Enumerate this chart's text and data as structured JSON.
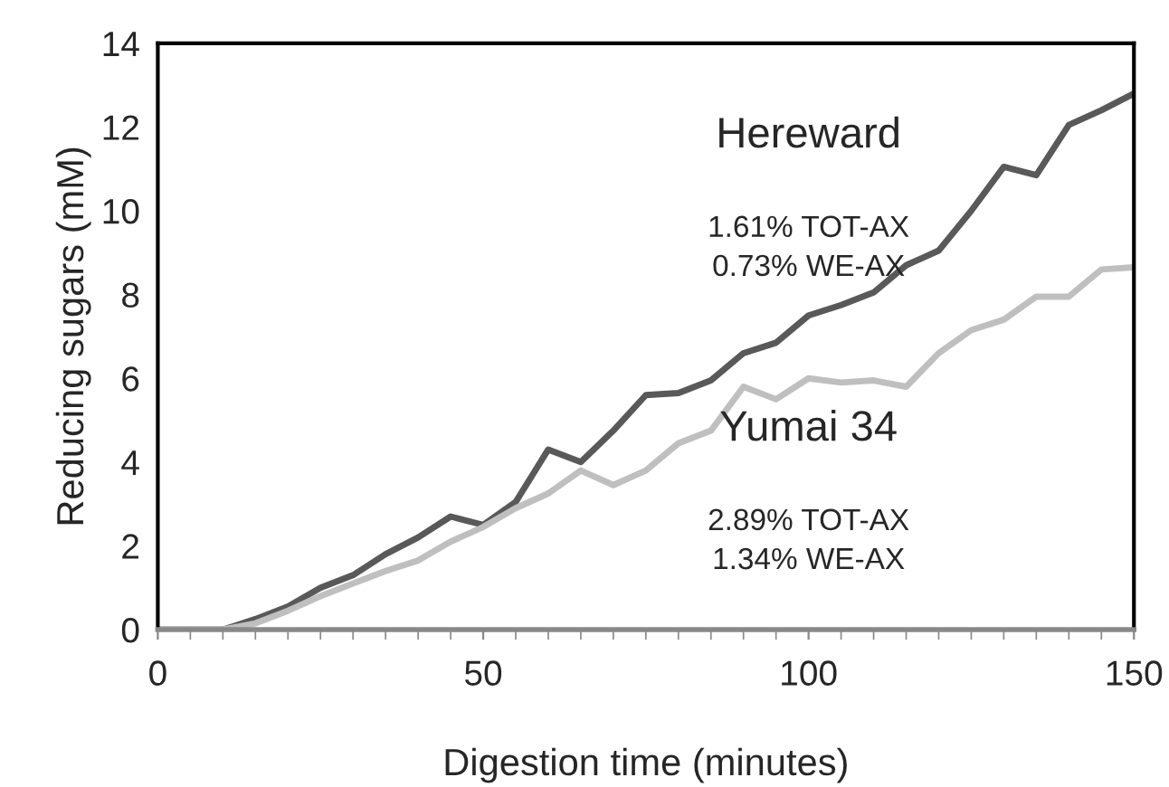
{
  "chart_data": {
    "type": "line",
    "xlabel": "Digestion time (minutes)",
    "ylabel": "Reducing sugars (mM)",
    "x": [
      0,
      5,
      10,
      15,
      20,
      25,
      30,
      35,
      40,
      45,
      50,
      55,
      60,
      65,
      70,
      75,
      80,
      85,
      90,
      95,
      100,
      105,
      110,
      115,
      120,
      125,
      130,
      135,
      140,
      145,
      150
    ],
    "series": [
      {
        "name": "Hereward",
        "color": "#595959",
        "values": [
          0,
          0,
          0,
          0.25,
          0.55,
          1.0,
          1.3,
          1.8,
          2.2,
          2.7,
          2.5,
          3.05,
          4.3,
          4.0,
          4.75,
          5.6,
          5.65,
          5.95,
          6.6,
          6.85,
          7.5,
          7.75,
          8.05,
          8.7,
          9.05,
          10.0,
          11.05,
          10.85,
          12.05,
          12.4,
          12.8
        ]
      },
      {
        "name": "Yumai 34",
        "color": "#bfbfbf",
        "values": [
          0,
          0,
          0,
          0.15,
          0.45,
          0.8,
          1.1,
          1.4,
          1.65,
          2.1,
          2.45,
          2.9,
          3.25,
          3.8,
          3.45,
          3.8,
          4.45,
          4.75,
          5.8,
          5.5,
          6.0,
          5.9,
          5.95,
          5.8,
          6.6,
          7.15,
          7.4,
          7.95,
          7.95,
          8.6,
          8.65
        ]
      }
    ],
    "annotations": [
      "1.61% TOT-AX\n0.73% WE-AX",
      "2.89% TOT-AX\n1.34% WE-AX"
    ],
    "xlim": [
      0,
      150
    ],
    "xticks": [
      0,
      50,
      100,
      150
    ],
    "ylim": [
      0,
      14
    ],
    "yticks": [
      0,
      2,
      4,
      6,
      8,
      10,
      12,
      14
    ],
    "grid": false,
    "legend": false,
    "marker": "none",
    "line_style": "solid"
  }
}
